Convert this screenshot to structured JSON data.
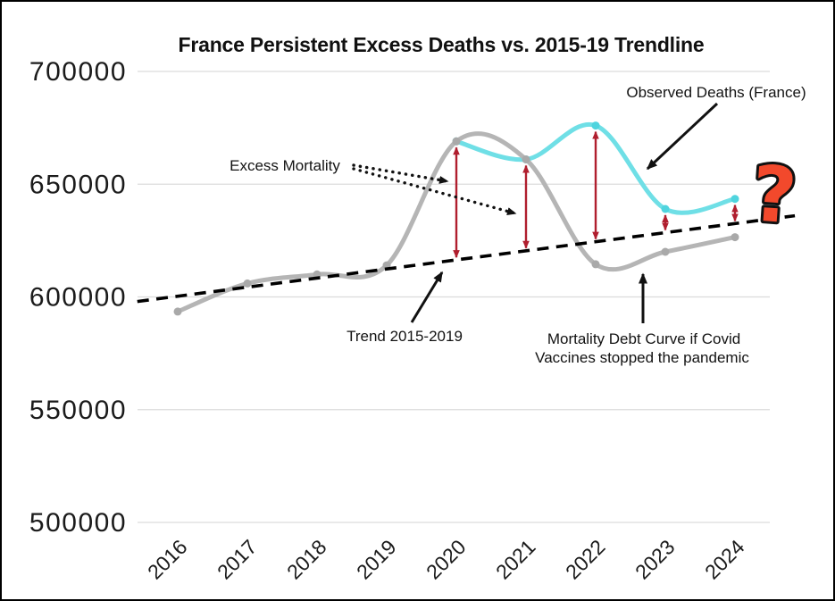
{
  "chart_data": {
    "type": "line",
    "title": "France Persistent Excess Deaths vs. 2015-19 Trendline",
    "x_years": [
      2016,
      2017,
      2018,
      2019,
      2020,
      2021,
      2022,
      2023,
      2024
    ],
    "y_ticks": [
      700000,
      650000,
      600000,
      550000,
      500000
    ],
    "ylim": [
      500000,
      700000
    ],
    "grid": "horizontal",
    "series": [
      {
        "name": "Observed Deaths (France)",
        "x": [
          2020,
          2021,
          2022,
          2023,
          2024
        ],
        "values": [
          669000,
          661000,
          676000,
          639000,
          643500
        ],
        "color": "#6fdfe6",
        "marker_color": "#4fd4de"
      },
      {
        "name": "Mortality Debt Curve if Covid Vaccines stopped the pandemic",
        "x": [
          2016,
          2017,
          2018,
          2019,
          2020,
          2021,
          2022,
          2023,
          2024
        ],
        "values": [
          593500,
          606000,
          610000,
          614000,
          669000,
          661000,
          614500,
          620000,
          626500
        ],
        "color": "#b5b5b5",
        "marker_color": "#a9a9a9"
      }
    ],
    "trendline": {
      "name": "Trend 2015-2019",
      "style": "dashed",
      "color": "#000000",
      "x_start": 2015.42,
      "value_start": 598000,
      "x_end": 2024.86,
      "value_end": 636000
    },
    "excess_arrows": {
      "color": "#b01e2e",
      "items": [
        {
          "year": 2020,
          "trend": 616400,
          "observed": 669000
        },
        {
          "year": 2021,
          "trend": 620500,
          "observed": 661000
        },
        {
          "year": 2022,
          "trend": 624500,
          "observed": 676000
        },
        {
          "year": 2023,
          "trend": 628500,
          "observed": 639000
        },
        {
          "year": 2024,
          "trend": 632500,
          "observed": 643500
        }
      ]
    }
  },
  "annotations": {
    "observed": {
      "text": "Observed Deaths (France)",
      "color": "#131313"
    },
    "excess": {
      "text": "Excess Mortality",
      "color": "#c22f3e"
    },
    "trend": {
      "text": "Trend 2015-2019",
      "color": "#131313"
    },
    "debt": {
      "line1": "Mortality Debt Curve if Covid",
      "line2": "Vaccines stopped the pandemic",
      "color": "#131313"
    },
    "question_mark": {
      "text": "?",
      "fill": "#f2492c",
      "outline": "#111111"
    }
  },
  "colors": {
    "grid": "#dcdcdc",
    "axis_text": "#1b1b1b",
    "background": "#ffffff"
  }
}
